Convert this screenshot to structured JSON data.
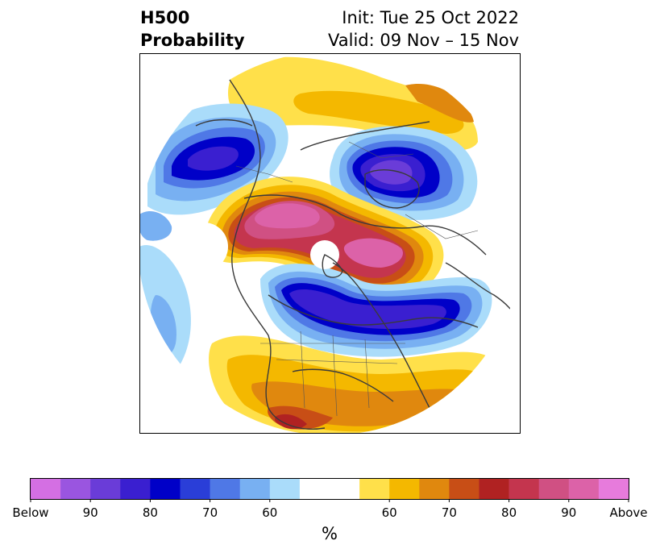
{
  "title": {
    "main_line1": "H500",
    "main_line2": "Probability",
    "init": "Init: Tue 25 Oct 2022",
    "valid": "Valid: 09 Nov – 15 Nov"
  },
  "colorbar": {
    "below_colors": [
      "#d46fe3",
      "#9a55e0",
      "#6a3cd8",
      "#3a1fd0",
      "#0000c8",
      "#2a3ed8",
      "#4f78e6",
      "#78b0f2",
      "#aadcfa"
    ],
    "neutral_color": "#ffffff",
    "above_colors": [
      "#ffe04a",
      "#f4b800",
      "#e0880e",
      "#c84e16",
      "#b02222",
      "#c4354e",
      "#d05083",
      "#dc62a8",
      "#e77bdc"
    ],
    "tick_labels": [
      "Below",
      "90",
      "80",
      "70",
      "60",
      "60",
      "70",
      "80",
      "90",
      "Above"
    ],
    "unit": "%"
  }
}
